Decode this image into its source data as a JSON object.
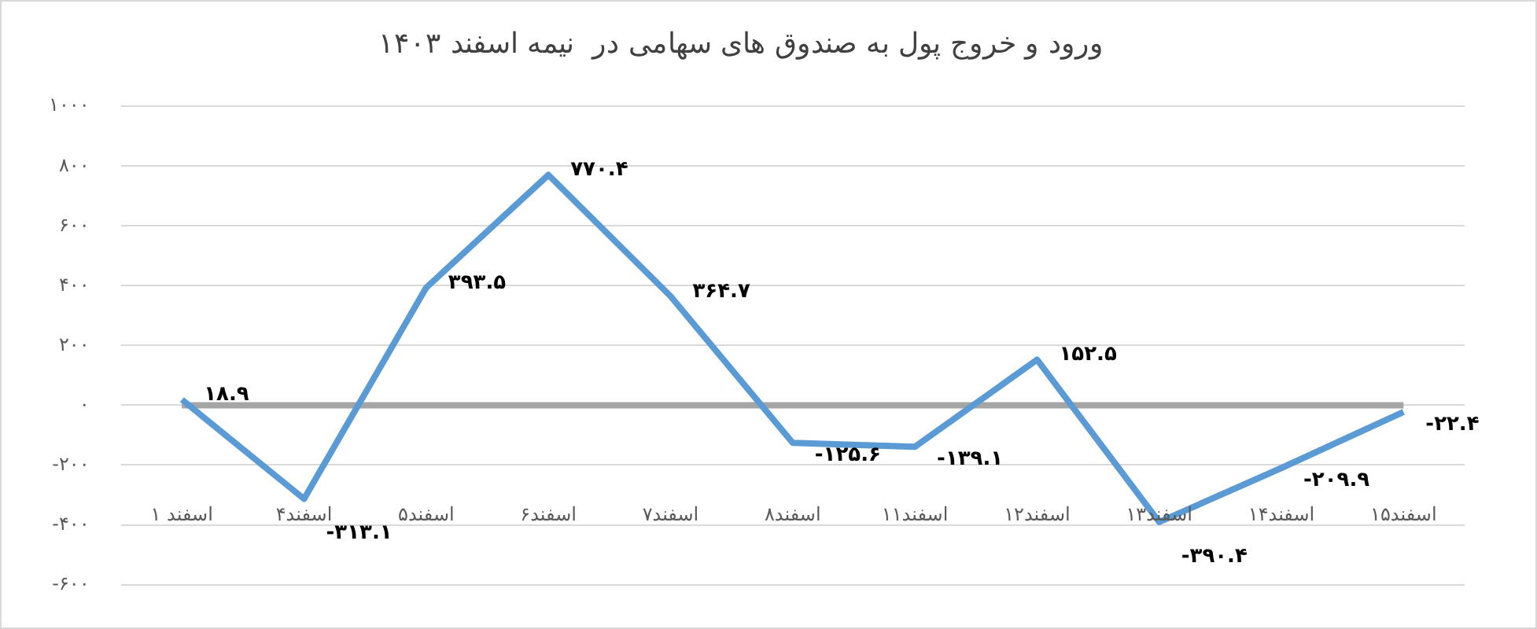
{
  "chart_data": {
    "type": "line",
    "title": "ورود و خروج پول به صندوق های سهامی در  نیمه اسفند ۱۴۰۳",
    "categories": [
      "۱ اسفند",
      "۴اسفند",
      "۵اسفند",
      "۶اسفند",
      "۷اسفند",
      "۸اسفند",
      "۱۱اسفند",
      "۱۲اسفند",
      "۱۳اسفند",
      "۱۴اسفند",
      "۱۵اسفند"
    ],
    "series": [
      {
        "color": "#5b9bd5",
        "values": [
          18.9,
          -313.1,
          393.5,
          770.4,
          364.7,
          -125.6,
          -139.1,
          152.5,
          -390.4,
          -209.9,
          -22.4
        ],
        "value_labels": [
          "۱۸.۹",
          "-۳۱۳.۱",
          "۳۹۳.۵",
          "۷۷۰.۴",
          "۳۶۴.۷",
          "-۱۲۵.۶",
          "-۱۳۹.۱",
          "۱۵۲.۵",
          "-۳۹۰.۴",
          "-۲۰۹.۹",
          "-۲۲.۴"
        ]
      }
    ],
    "ylim": [
      -600,
      1000
    ],
    "yticks": [
      {
        "value": -600,
        "label": "-۶۰۰"
      },
      {
        "value": -400,
        "label": "-۴۰۰"
      },
      {
        "value": -200,
        "label": "-۲۰۰"
      },
      {
        "value": 0,
        "label": "۰"
      },
      {
        "value": 200,
        "label": "۲۰۰"
      },
      {
        "value": 400,
        "label": "۴۰۰"
      },
      {
        "value": 600,
        "label": "۶۰۰"
      },
      {
        "value": 800,
        "label": "۸۰۰"
      },
      {
        "value": 1000,
        "label": "۱۰۰۰"
      }
    ],
    "ref_lines": [
      {
        "axis": "y",
        "value": 0,
        "color": "#a5a5a5"
      }
    ],
    "grid": "y",
    "legend": false,
    "marker": "none",
    "line_style": "solid"
  }
}
